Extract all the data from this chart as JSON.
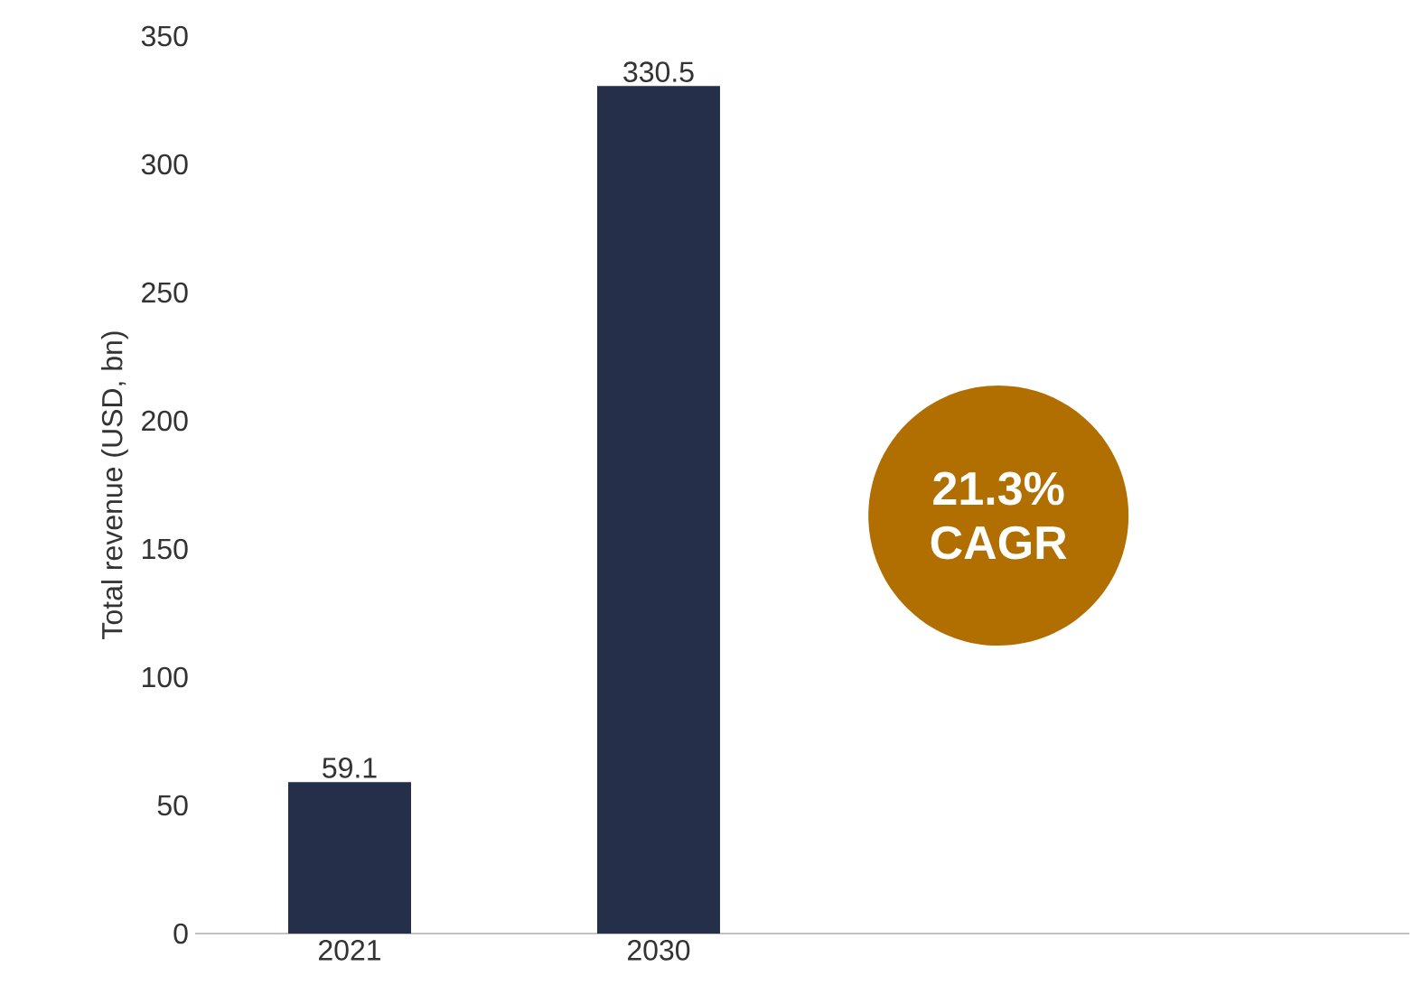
{
  "chart_data": {
    "type": "bar",
    "ylabel": "Total revenue (USD, bn)",
    "categories": [
      "2021",
      "2030"
    ],
    "values": [
      59.1,
      330.5
    ],
    "color": "#262f4a",
    "ylim": [
      0,
      350
    ],
    "yticks": [
      0,
      50,
      100,
      150,
      200,
      250,
      300,
      350
    ],
    "data_labels": true,
    "grid": false,
    "annotations": [
      "21.3%",
      "CAGR"
    ]
  }
}
